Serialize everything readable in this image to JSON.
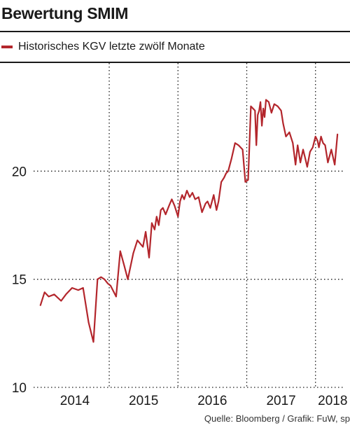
{
  "title": "Bewertung SMIM",
  "source": "Quelle: Bloomberg / Grafik: FuW, sp",
  "colors": {
    "line": "#b3262c",
    "text": "#1a1a1a",
    "grid": "#1a1a1a"
  },
  "chart_data": {
    "type": "line",
    "title": "Bewertung SMIM",
    "xlabel": "",
    "ylabel": "",
    "ylim": [
      10,
      25
    ],
    "xlim": [
      2013.9,
      2018.4
    ],
    "yticks": [
      10,
      15,
      20
    ],
    "ytick_labels": [
      "10",
      "15",
      "20"
    ],
    "xtick_labels": [
      {
        "label": "2014",
        "x": 2014.5
      },
      {
        "label": "2015",
        "x": 2015.5
      },
      {
        "label": "2016",
        "x": 2016.5
      },
      {
        "label": "2017",
        "x": 2017.5
      },
      {
        "label": "2018",
        "x": 2018.25
      }
    ],
    "year_boundaries": [
      2015,
      2016,
      2017,
      2018
    ],
    "grid": "dotted",
    "legend": "top-left",
    "series": [
      {
        "name": "Historisches KGV letzte zwölf Monate",
        "x": [
          2014.0,
          2014.06,
          2014.12,
          2014.2,
          2014.3,
          2014.37,
          2014.46,
          2014.55,
          2014.62,
          2014.7,
          2014.77,
          2014.83,
          2014.88,
          2014.93,
          2014.98,
          2015.02,
          2015.1,
          2015.16,
          2015.22,
          2015.27,
          2015.35,
          2015.41,
          2015.49,
          2015.53,
          2015.58,
          2015.62,
          2015.66,
          2015.69,
          2015.72,
          2015.75,
          2015.78,
          2015.82,
          2015.87,
          2015.91,
          2015.95,
          2016.0,
          2016.03,
          2016.06,
          2016.09,
          2016.13,
          2016.17,
          2016.21,
          2016.25,
          2016.3,
          2016.35,
          2016.4,
          2016.43,
          2016.47,
          2016.52,
          2016.56,
          2016.59,
          2016.63,
          2016.67,
          2016.7,
          2016.73,
          2016.78,
          2016.83,
          2016.88,
          2016.94,
          2016.98,
          2017.02,
          2017.06,
          2017.09,
          2017.12,
          2017.14,
          2017.16,
          2017.18,
          2017.2,
          2017.22,
          2017.24,
          2017.26,
          2017.28,
          2017.32,
          2017.36,
          2017.4,
          2017.45,
          2017.5,
          2017.53,
          2017.57,
          2017.62,
          2017.67,
          2017.71,
          2017.74,
          2017.78,
          2017.82,
          2017.85,
          2017.88,
          2017.92,
          2017.96,
          2018.0,
          2018.03,
          2018.05,
          2018.08,
          2018.11,
          2018.14,
          2018.18,
          2018.23,
          2018.28,
          2018.32
        ],
        "values": [
          13.8,
          14.4,
          14.2,
          14.3,
          14.0,
          14.3,
          14.6,
          14.5,
          14.6,
          13.0,
          12.1,
          15.0,
          15.1,
          15.0,
          14.8,
          14.7,
          14.2,
          16.3,
          15.6,
          15.0,
          16.2,
          16.8,
          16.5,
          17.2,
          16.0,
          17.6,
          17.3,
          17.9,
          17.5,
          18.2,
          18.3,
          18.0,
          18.4,
          18.7,
          18.4,
          17.9,
          18.6,
          18.9,
          18.7,
          19.1,
          18.8,
          19.0,
          18.7,
          18.8,
          18.1,
          18.5,
          18.6,
          18.3,
          18.9,
          18.2,
          18.6,
          19.5,
          19.7,
          19.9,
          20.0,
          20.6,
          21.3,
          21.2,
          21.0,
          19.5,
          19.6,
          23.0,
          22.9,
          22.8,
          21.2,
          22.6,
          22.8,
          23.2,
          22.1,
          22.9,
          22.5,
          23.3,
          23.2,
          22.7,
          23.1,
          23.0,
          22.8,
          22.2,
          21.6,
          21.8,
          21.3,
          20.3,
          21.2,
          20.4,
          21.0,
          20.6,
          20.2,
          20.9,
          21.1,
          21.6,
          21.4,
          21.1,
          21.6,
          21.3,
          21.2,
          20.4,
          21.0,
          20.3,
          21.7
        ]
      }
    ]
  }
}
